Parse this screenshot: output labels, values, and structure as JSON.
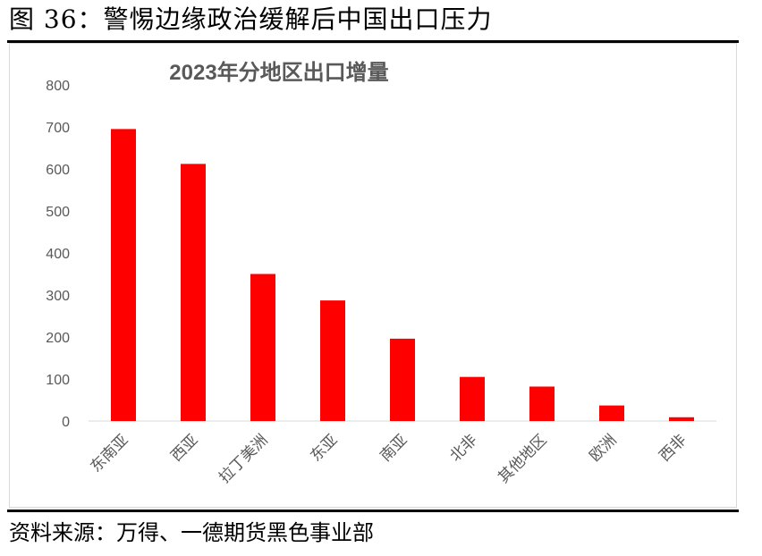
{
  "figure_title": "图 36：警惕边缘政治缓解后中国出口压力",
  "source": "资料来源：万得、一德期货黑色事业部",
  "chart_data": {
    "type": "bar",
    "title": "2023年分地区出口增量",
    "xlabel": "",
    "ylabel": "",
    "categories": [
      "东南亚",
      "西亚",
      "拉丁美洲",
      "东亚",
      "南亚",
      "北非",
      "其他地区",
      "欧洲",
      "西非"
    ],
    "values": [
      695,
      612,
      350,
      287,
      196,
      105,
      82,
      37,
      9
    ],
    "ylim": [
      0,
      800
    ],
    "yticks": [
      0,
      100,
      200,
      300,
      400,
      500,
      600,
      700,
      800
    ],
    "grid": false,
    "legend": "none",
    "bar_color": "#ff0000",
    "axis_color": "#d9d9d9",
    "tick_label_color": "#595959",
    "title_color": "#595959"
  }
}
